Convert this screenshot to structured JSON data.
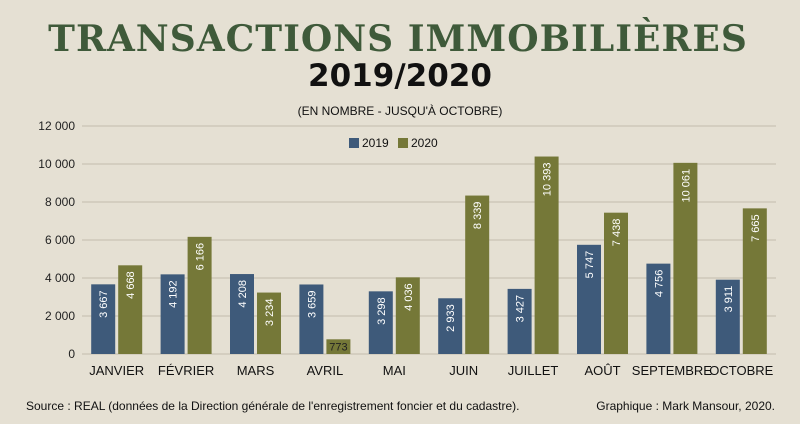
{
  "colors": {
    "s2019": "#3e5a7a",
    "s2020": "#757838",
    "title": "#3f5a3a"
  },
  "footer": {
    "source": "Source : REAL (données de la Direction générale de l'enregistrement foncier et du cadastre).",
    "credit": "Graphique : Mark Mansour, 2020."
  },
  "chart_data": {
    "type": "bar",
    "title": "TRANSACTIONS IMMOBILIÈRES",
    "title_line2": "2019/2020",
    "subtitle": "(EN NOMBRE - JUSQU'À OCTOBRE)",
    "xlabel": "",
    "ylabel": "",
    "ylim": [
      0,
      12000
    ],
    "yticks": [
      0,
      2000,
      4000,
      6000,
      8000,
      10000,
      12000
    ],
    "ytick_labels": [
      "0",
      "2 000",
      "4 000",
      "6 000",
      "8 000",
      "10 000",
      "12 000"
    ],
    "grid": true,
    "legend_position": "top-center",
    "categories": [
      "JANVIER",
      "FÉVRIER",
      "MARS",
      "AVRIL",
      "MAI",
      "JUIN",
      "JUILLET",
      "AOÛT",
      "SEPTEMBRE",
      "OCTOBRE"
    ],
    "series": [
      {
        "name": "2019",
        "values": [
          3667,
          4192,
          4208,
          3659,
          3298,
          2933,
          3427,
          5747,
          4756,
          3911
        ],
        "labels": [
          "3 667",
          "4 192",
          "4 208",
          "3 659",
          "3 298",
          "2 933",
          "3 427",
          "5 747",
          "4 756",
          "3 911"
        ]
      },
      {
        "name": "2020",
        "values": [
          4668,
          6166,
          3234,
          773,
          4036,
          8339,
          10393,
          7438,
          10061,
          7665
        ],
        "labels": [
          "4 668",
          "6 166",
          "3 234",
          "773",
          "4 036",
          "8 339",
          "10 393",
          "7 438",
          "10 061",
          "7 665"
        ]
      }
    ]
  }
}
